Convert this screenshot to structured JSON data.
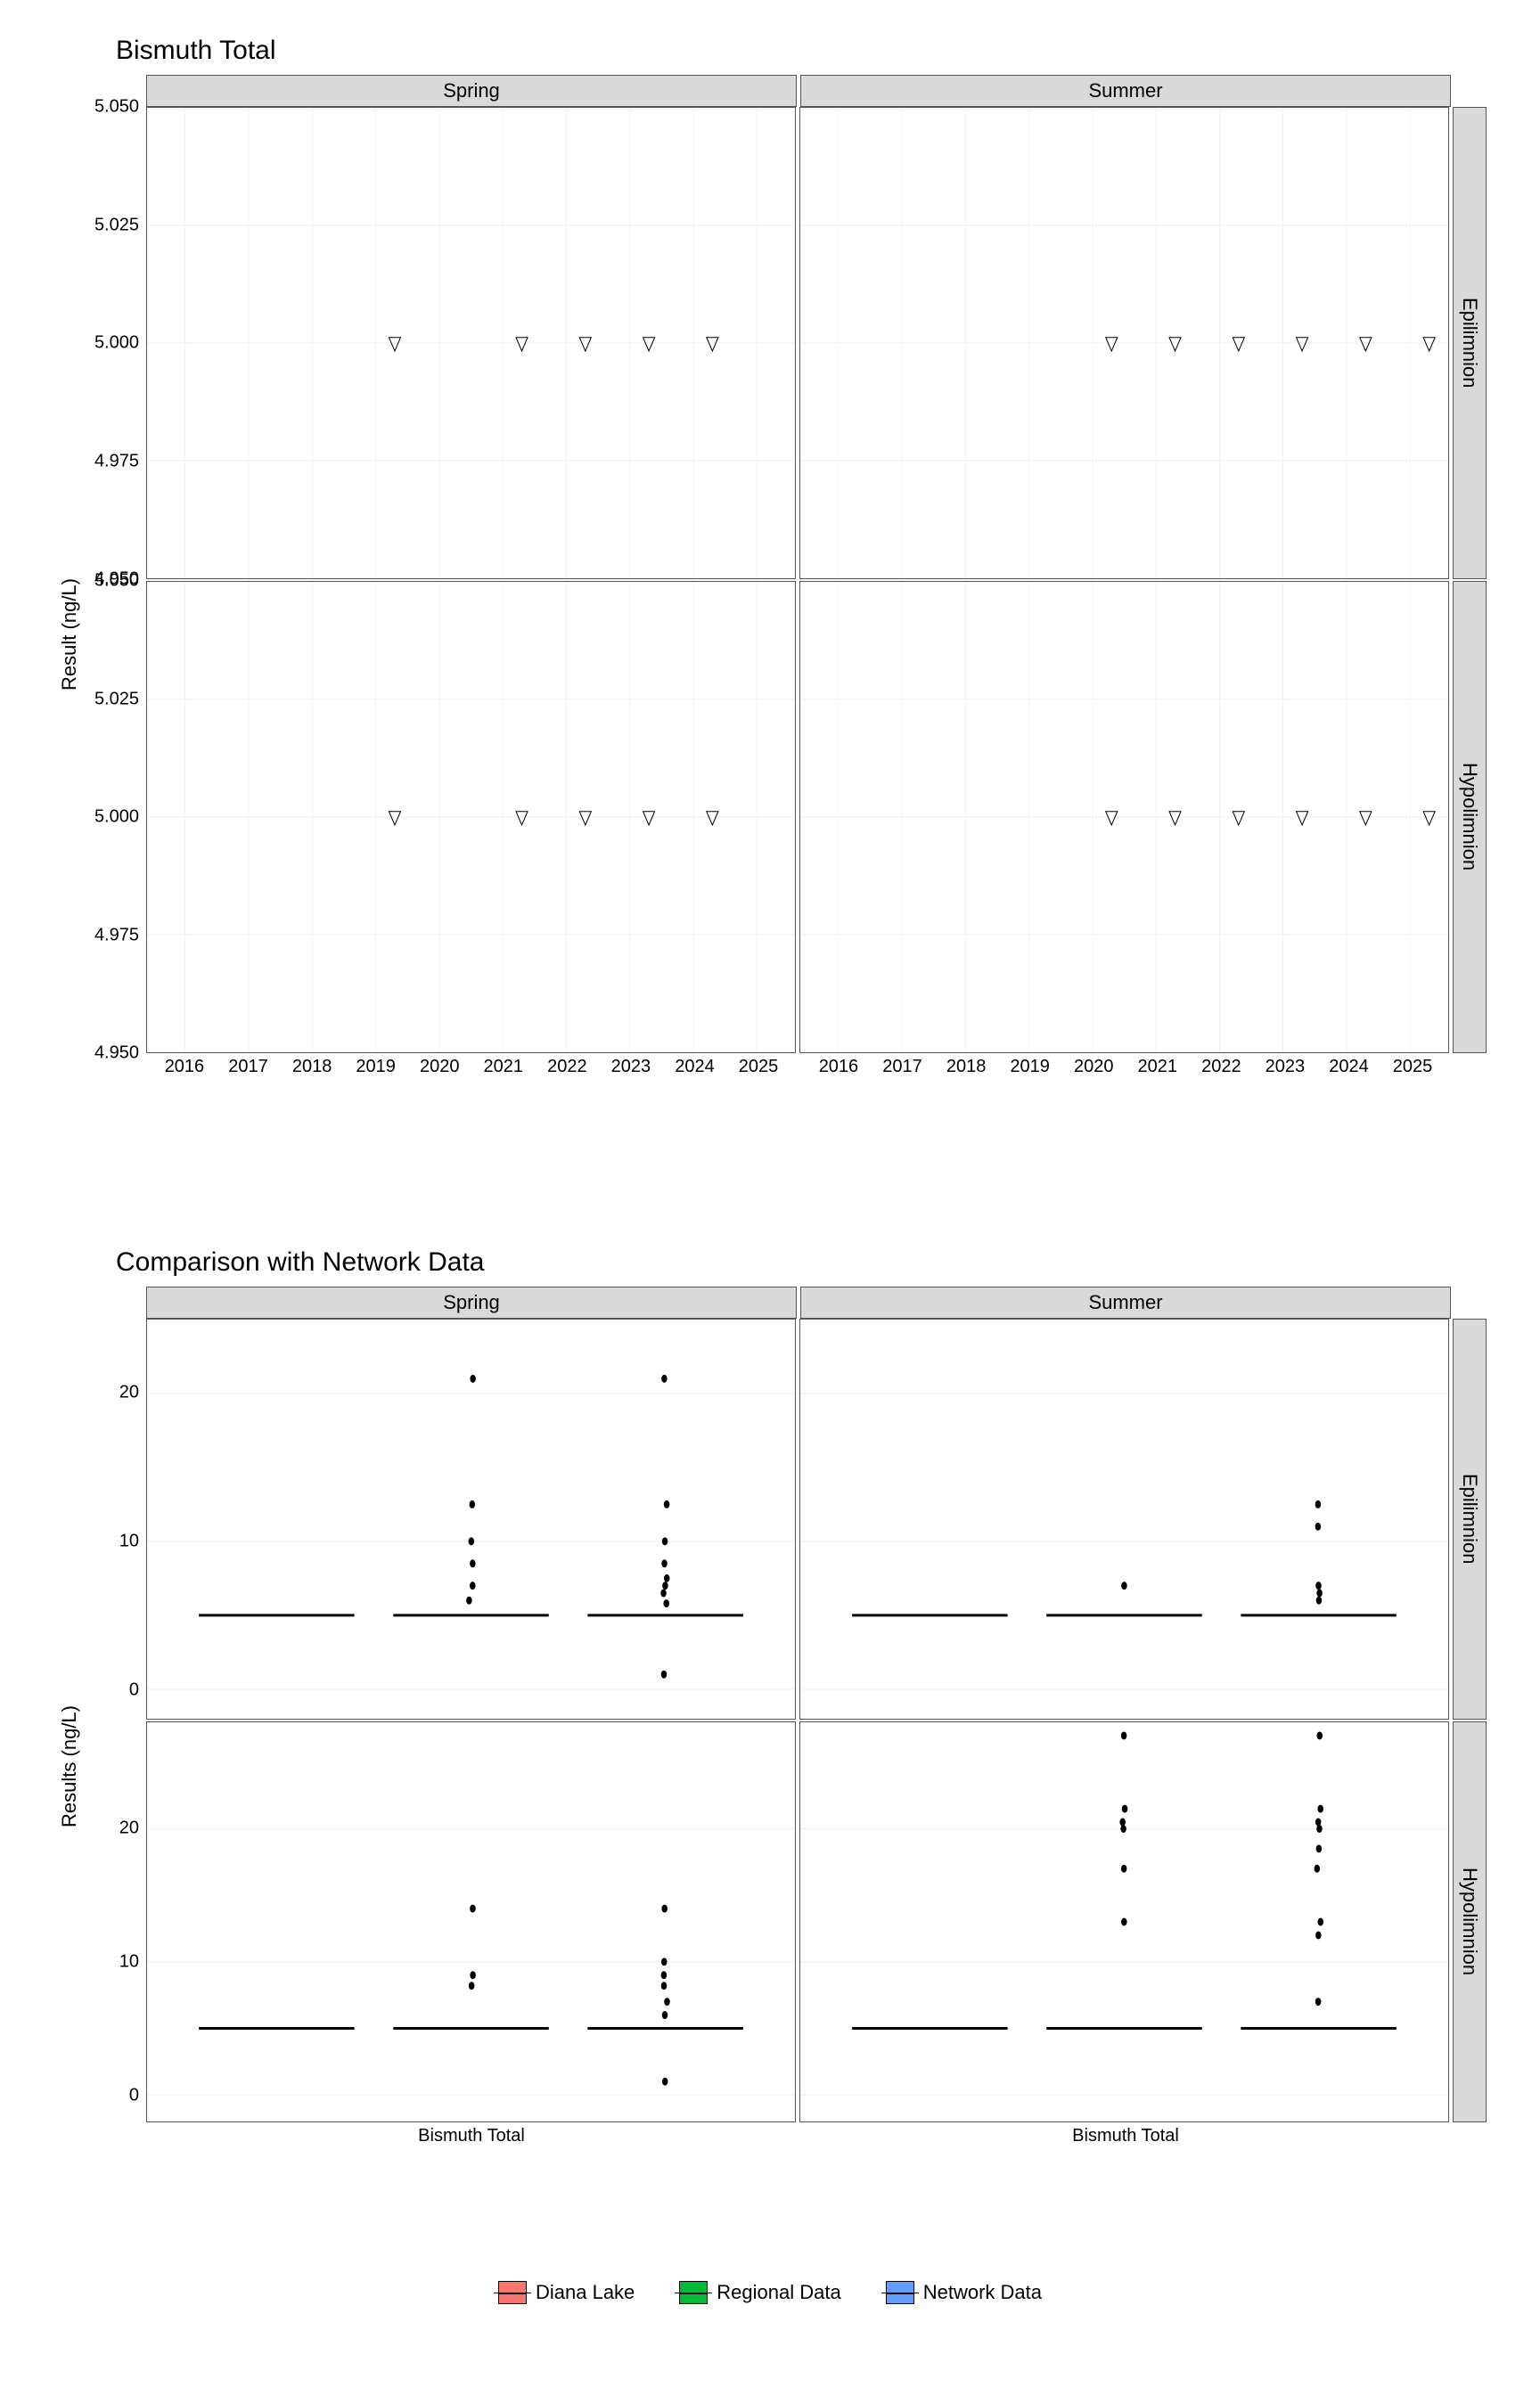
{
  "title1": "Bismuth Total",
  "title2": "Comparison with Network Data",
  "yLabel1": "Result (ng/L)",
  "yLabel2": "Results (ng/L)",
  "colFacets": [
    "Spring",
    "Summer"
  ],
  "rowFacets": [
    "Epilimnion",
    "Hypolimnion"
  ],
  "topChart": {
    "ylim": [
      4.95,
      5.05
    ],
    "yticks": [
      4.95,
      4.975,
      5.0,
      5.025,
      5.05
    ],
    "xlim": [
      2015.4,
      2025.6
    ],
    "xticks": [
      2016,
      2017,
      2018,
      2019,
      2020,
      2021,
      2022,
      2023,
      2024,
      2025
    ],
    "panelHeight": 530,
    "panelData": {
      "Spring": {
        "Epilimnion": [
          {
            "x": 2019,
            "y": 5.0
          },
          {
            "x": 2021,
            "y": 5.0
          },
          {
            "x": 2022,
            "y": 5.0
          },
          {
            "x": 2023,
            "y": 5.0
          },
          {
            "x": 2024,
            "y": 5.0
          }
        ],
        "Hypolimnion": [
          {
            "x": 2019,
            "y": 5.0
          },
          {
            "x": 2021,
            "y": 5.0
          },
          {
            "x": 2022,
            "y": 5.0
          },
          {
            "x": 2023,
            "y": 5.0
          },
          {
            "x": 2024,
            "y": 5.0
          }
        ]
      },
      "Summer": {
        "Epilimnion": [
          {
            "x": 2020,
            "y": 5.0
          },
          {
            "x": 2021,
            "y": 5.0
          },
          {
            "x": 2022,
            "y": 5.0
          },
          {
            "x": 2023,
            "y": 5.0
          },
          {
            "x": 2024,
            "y": 5.0
          },
          {
            "x": 2025,
            "y": 5.0
          }
        ],
        "Hypolimnion": [
          {
            "x": 2020,
            "y": 5.0
          },
          {
            "x": 2021,
            "y": 5.0
          },
          {
            "x": 2022,
            "y": 5.0
          },
          {
            "x": 2023,
            "y": 5.0
          },
          {
            "x": 2024,
            "y": 5.0
          },
          {
            "x": 2025,
            "y": 5.0
          }
        ]
      }
    },
    "markerSize": 9,
    "grid_color": "#ededed"
  },
  "bottomChart": {
    "row1": {
      "ylim": [
        -2,
        25
      ],
      "yticks": [
        0,
        10,
        20
      ]
    },
    "row2": {
      "ylim": [
        -2,
        28
      ],
      "yticks": [
        0,
        10,
        20
      ]
    },
    "panelHeight": 450,
    "xLabel": "Bismuth Total",
    "groupX": [
      0.2,
      0.5,
      0.8
    ],
    "median": 5,
    "boxHalfWidth": 0.12,
    "outliers": {
      "Spring": {
        "Epilimnion": {
          "g1": [],
          "g2": [
            6,
            7,
            8.5,
            10,
            12.5,
            21
          ],
          "g3": [
            1,
            5.8,
            6.5,
            7,
            7.5,
            8.5,
            10,
            12.5,
            21
          ]
        },
        "Hypolimnion": {
          "g1": [],
          "g2": [
            8.2,
            9,
            14
          ],
          "g3": [
            1,
            6,
            7,
            8.2,
            9,
            10,
            14
          ]
        }
      },
      "Summer": {
        "Epilimnion": {
          "g1": [],
          "g2": [
            7
          ],
          "g3": [
            6,
            6.5,
            7,
            11,
            12.5
          ]
        },
        "Hypolimnion": {
          "g1": [],
          "g2": [
            13,
            17,
            20,
            20.5,
            21.5,
            27
          ],
          "g3": [
            7,
            12,
            13,
            17,
            18.5,
            20,
            20.5,
            21.5,
            27
          ]
        }
      }
    }
  },
  "legend": [
    {
      "label": "Diana Lake",
      "color": "#F8766D"
    },
    {
      "label": "Regional Data",
      "color": "#00BA38"
    },
    {
      "label": "Network Data",
      "color": "#619CFF"
    }
  ],
  "colors": {
    "strip_bg": "#d9d9d9",
    "panel_border": "#555555",
    "grid": "#ededed"
  }
}
